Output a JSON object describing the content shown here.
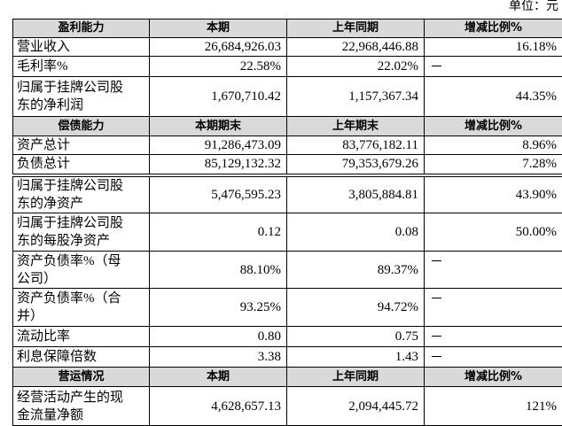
{
  "unit": "单位：元",
  "sections": [
    {
      "header": [
        "盈利能力",
        "本期",
        "上年同期",
        "增减比例%"
      ],
      "rows": [
        [
          "营业收入",
          "26,684,926.03",
          "22,968,446.88",
          "16.18%"
        ],
        [
          "毛利率%",
          "22.58%",
          "22.02%",
          "－"
        ],
        [
          "归属于挂牌公司股东的净利润",
          "1,670,710.42",
          "1,157,367.34",
          "44.35%"
        ]
      ]
    },
    {
      "header": [
        "偿债能力",
        "本期期末",
        "上年期末",
        "增减比例%"
      ],
      "rows": [
        [
          "资产总计",
          "91,286,473.09",
          "83,776,182.11",
          "8.96%"
        ],
        [
          "负债总计",
          "85,129,132.32",
          "79,353,679.26",
          "7.28%"
        ],
        [
          "归属于挂牌公司股东的净资产",
          "5,476,595.23",
          "3,805,884.81",
          "43.90%"
        ],
        [
          "归属于挂牌公司股东的每股净资产",
          "0.12",
          "0.08",
          "50.00%"
        ],
        [
          "资产负债率%（母公司）",
          "88.10%",
          "89.37%",
          "－"
        ],
        [
          "资产负债率%（合并）",
          "93.25%",
          "94.72%",
          "－"
        ],
        [
          "流动比率",
          "0.80",
          "0.75",
          "－"
        ],
        [
          "利息保障倍数",
          "3.38",
          "1.43",
          "－"
        ]
      ]
    },
    {
      "header": [
        "营运情况",
        "本期",
        "上年同期",
        "增减比例%"
      ],
      "rows": [
        [
          "经营活动产生的现金流量净额",
          "4,628,657.13",
          "2,094,445.72",
          "121%"
        ]
      ]
    }
  ]
}
